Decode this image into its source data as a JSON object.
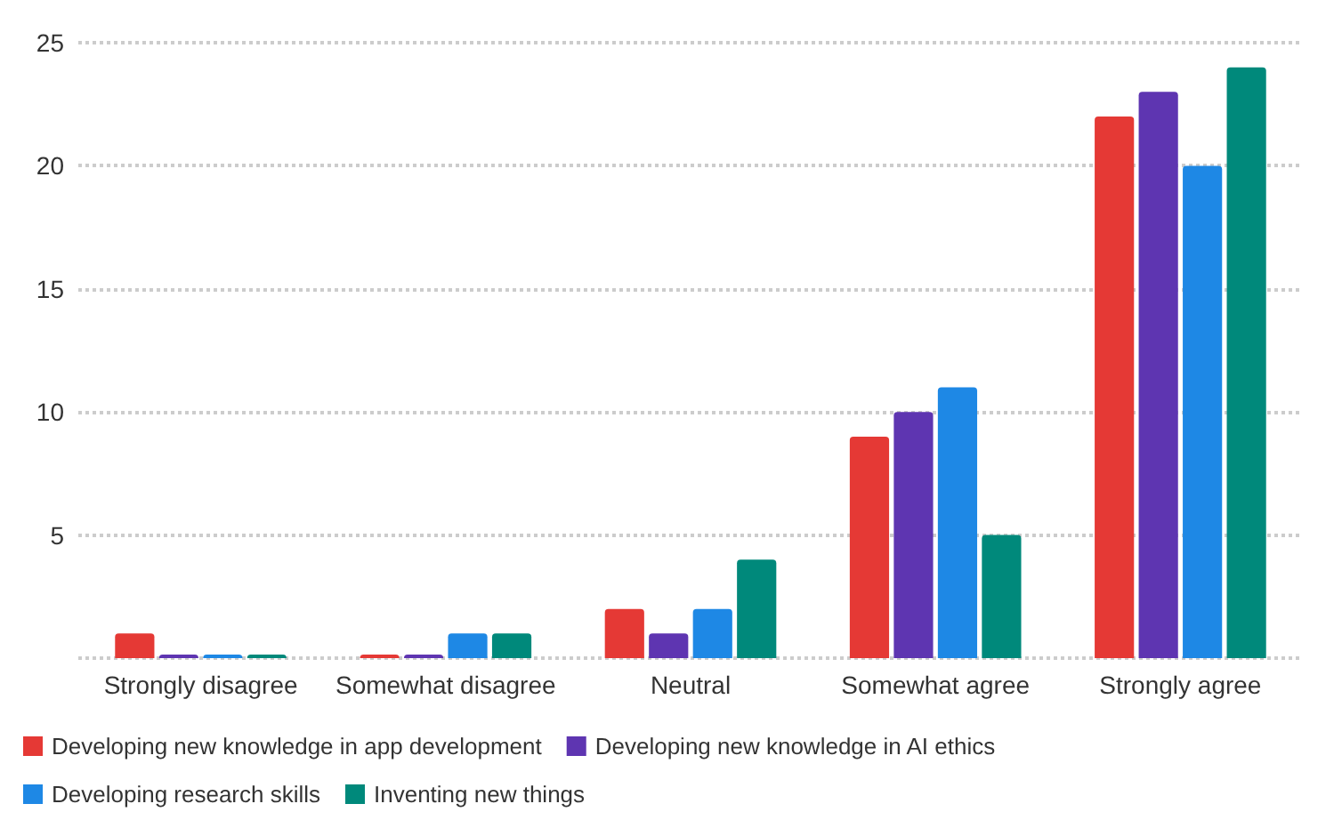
{
  "chart_data": {
    "type": "bar",
    "categories": [
      "Strongly disagree",
      "Somewhat disagree",
      "Neutral",
      "Somewhat agree",
      "Strongly agree"
    ],
    "series": [
      {
        "name": "Developing new knowledge in app development",
        "color": "#e53935",
        "values": [
          1,
          0,
          2,
          9,
          22
        ]
      },
      {
        "name": "Developing new knowledge in AI ethics",
        "color": "#5e35b1",
        "values": [
          0,
          0,
          1,
          10,
          23
        ]
      },
      {
        "name": "Developing research skills",
        "color": "#1e88e5",
        "values": [
          0,
          1,
          2,
          11,
          20
        ]
      },
      {
        "name": "Inventing new things",
        "color": "#00897b",
        "values": [
          0,
          1,
          4,
          5,
          24
        ]
      }
    ],
    "ylim": [
      0,
      25
    ],
    "yticks": [
      {
        "value": 0,
        "label": null
      },
      5,
      10,
      15,
      20,
      25
    ],
    "grid": "y",
    "legend": "bottom"
  }
}
